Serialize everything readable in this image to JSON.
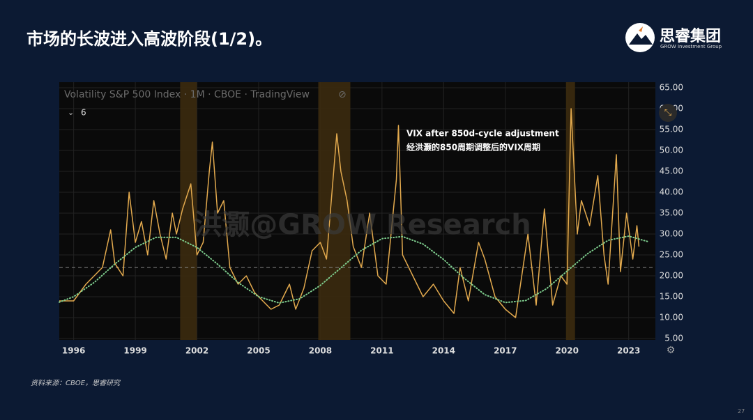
{
  "header": {
    "title": "市场的长波进入高波阶段(1/2)。",
    "logo_name": "思睿集团",
    "logo_sub": "GROW Investment Group"
  },
  "chart_data": {
    "type": "line",
    "title": "Volatility S&P 500 Index · 1M · CBOE · TradingView",
    "study_count": 6,
    "annotations": [
      "VIX after 850d-cycle adjustment",
      "经洪灏的850周期调整后的VIX周期"
    ],
    "watermark": "洪灏@GROW Research",
    "xlim": [
      1995.3,
      2024.3
    ],
    "xticks": [
      1996,
      1999,
      2002,
      2005,
      2008,
      2011,
      2014,
      2017,
      2020,
      2023
    ],
    "ylim": [
      5,
      65
    ],
    "yticks": [
      {
        "value": 5,
        "label": "5.00"
      },
      {
        "value": 10,
        "label": "10.00"
      },
      {
        "value": 15,
        "label": "15.00"
      },
      {
        "value": 20,
        "label": "20.00"
      },
      {
        "value": 25,
        "label": "25.00"
      },
      {
        "value": 30,
        "label": "30.00"
      },
      {
        "value": 35,
        "label": "35.00"
      },
      {
        "value": 40,
        "label": "40.00"
      },
      {
        "value": 45,
        "label": "45.00"
      },
      {
        "value": 50,
        "label": "50.00"
      },
      {
        "value": 55,
        "label": "55.00"
      },
      {
        "value": 60,
        "label": "60.00"
      },
      {
        "value": 65,
        "label": "65.00"
      }
    ],
    "grid": true,
    "reference_line": 22,
    "shaded_ranges": [
      [
        2001.18,
        2001.99
      ],
      [
        2007.9,
        2009.46
      ],
      [
        2019.95,
        2020.39
      ]
    ],
    "series": [
      {
        "color": "#e3aa4e",
        "style": "solid",
        "x": [
          1995.3,
          1996.0,
          1996.3,
          1996.6,
          1997.0,
          1997.4,
          1997.8,
          1998.0,
          1998.4,
          1998.7,
          1999.0,
          1999.3,
          1999.6,
          1999.9,
          2000.2,
          2000.5,
          2000.8,
          2001.0,
          2001.3,
          2001.7,
          2002.0,
          2002.3,
          2002.6,
          2002.75,
          2003.0,
          2003.3,
          2003.6,
          2004.0,
          2004.4,
          2004.8,
          2005.2,
          2005.6,
          2006.0,
          2006.5,
          2006.8,
          2007.2,
          2007.6,
          2008.0,
          2008.3,
          2008.8,
          2009.0,
          2009.3,
          2009.6,
          2010.0,
          2010.4,
          2010.8,
          2011.2,
          2011.7,
          2011.8,
          2012.0,
          2012.5,
          2013.0,
          2013.5,
          2014.0,
          2014.5,
          2014.8,
          2015.2,
          2015.7,
          2016.0,
          2016.5,
          2017.0,
          2017.5,
          2018.1,
          2018.5,
          2018.9,
          2019.3,
          2019.7,
          2020.0,
          2020.2,
          2020.5,
          2020.7,
          2021.1,
          2021.5,
          2021.8,
          2022.0,
          2022.4,
          2022.6,
          2022.9,
          2023.2,
          2023.4,
          2023.5
        ],
        "values": [
          14,
          14,
          16,
          18,
          20,
          22,
          31,
          23,
          20,
          40,
          28,
          33,
          25,
          38,
          30,
          24,
          35,
          30,
          36,
          42,
          25,
          28,
          45,
          52,
          35,
          38,
          22,
          18,
          20,
          16,
          14,
          12,
          13,
          18,
          12,
          17,
          26,
          28,
          24,
          54,
          45,
          38,
          27,
          22,
          35,
          20,
          18,
          43,
          56,
          25,
          20,
          15,
          18,
          14,
          11,
          22,
          14,
          28,
          24,
          15,
          12,
          10,
          30,
          13,
          36,
          13,
          20,
          18,
          60,
          30,
          38,
          32,
          44,
          25,
          18,
          49,
          21,
          35,
          24,
          32,
          27
        ]
      },
      {
        "color": "#7fcf8f",
        "style": "dotted",
        "x": [
          1995.3,
          1996,
          1997,
          1998,
          1999,
          2000,
          2001,
          2002,
          2003,
          2004,
          2005,
          2006,
          2007,
          2008,
          2009,
          2010,
          2011,
          2012,
          2013,
          2014,
          2015,
          2016,
          2017,
          2018,
          2019,
          2020,
          2021,
          2022,
          2023,
          2024
        ],
        "values": [
          13.7,
          15.0,
          18.4,
          22.8,
          26.8,
          29.2,
          29.2,
          26.8,
          22.8,
          18.4,
          15.0,
          13.5,
          14.5,
          17.7,
          21.9,
          26.1,
          28.9,
          29.4,
          27.6,
          23.9,
          19.4,
          15.5,
          13.6,
          14.1,
          16.9,
          21.1,
          25.3,
          28.5,
          29.5,
          28.1
        ]
      }
    ]
  },
  "footer": {
    "source": "资料来源：CBOE，思睿研究",
    "page": "27"
  }
}
